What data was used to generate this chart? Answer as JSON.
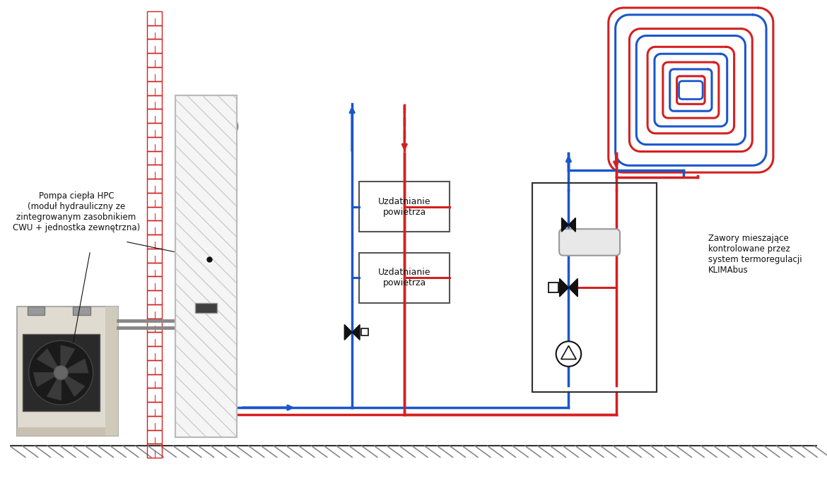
{
  "bg_color": "#ffffff",
  "red_color": "#d42020",
  "blue_color": "#1a56cc",
  "orange_color": "#f5a623",
  "gray_color": "#888888",
  "black_color": "#111111",
  "label_left": "Pompa ciepła HPC\n(moduł hydrauliczny ze\nzintegrowanym zasobnikiem\nCWU + jednostka zewnętrzna)",
  "label_right": "Zawory mieszające\nkontrolowane przez\nsystem termoregulacji\nKLIMAbus",
  "box1_label": "Uzdatnianie\npowietrza",
  "box2_label": "Uzdatnianie\npowietrza",
  "lw_pipe": 2.2,
  "lw_thick": 2.5
}
